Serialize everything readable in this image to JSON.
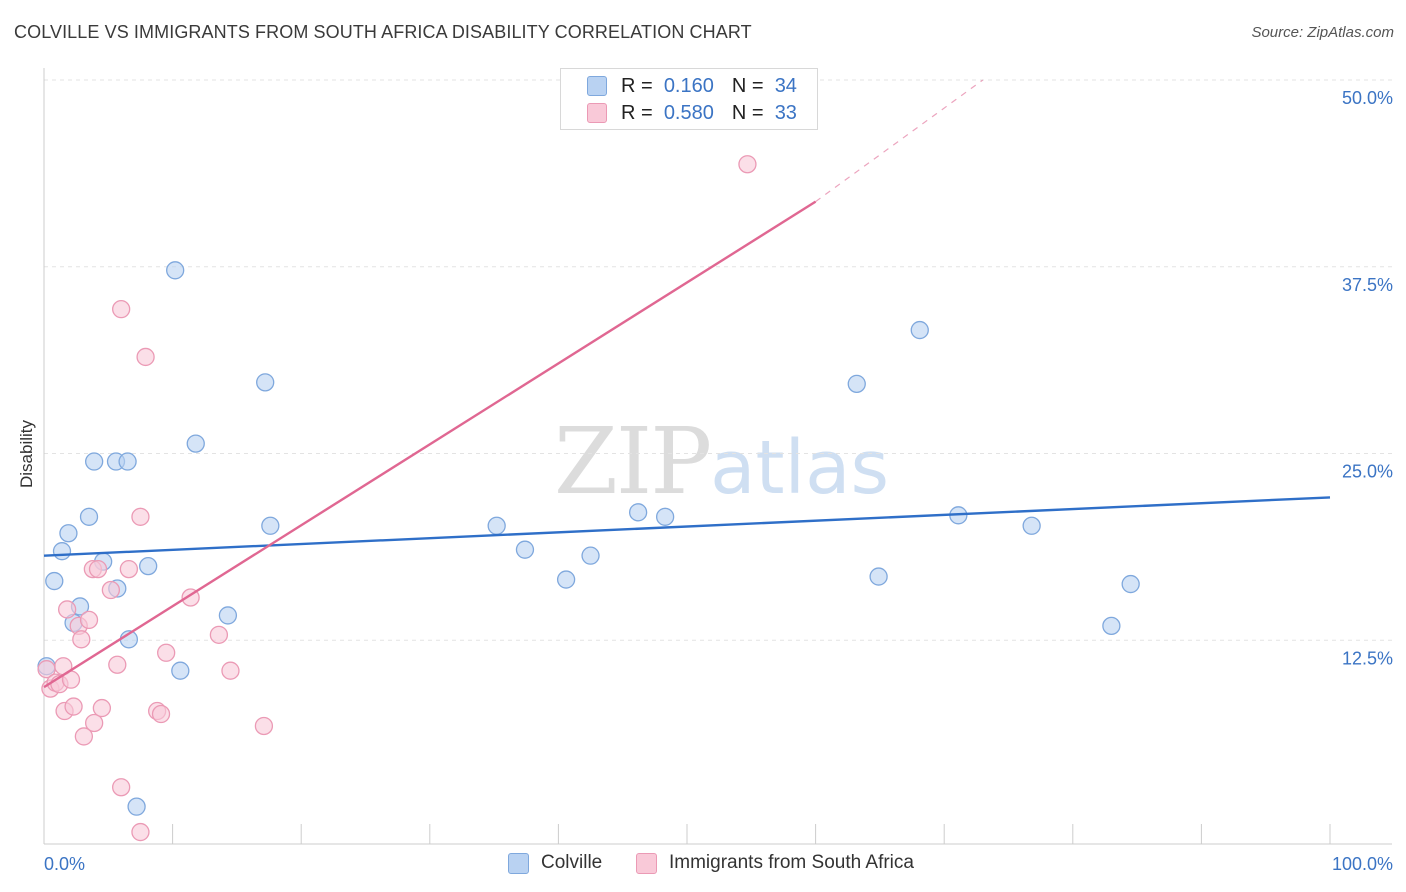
{
  "header": {
    "title": "COLVILLE VS IMMIGRANTS FROM SOUTH AFRICA DISABILITY CORRELATION CHART",
    "source": "Source: ZipAtlas.com"
  },
  "watermark": {
    "zip": "ZIP",
    "atlas": "atlas"
  },
  "legend_top": [
    {
      "r_label": "R =",
      "r_value": "0.160",
      "n_label": "N =",
      "n_value": "34"
    },
    {
      "r_label": "R =",
      "r_value": "0.580",
      "n_label": "N =",
      "n_value": "33"
    }
  ],
  "colors": {
    "colville_fill": "#b9d2f2",
    "colville_stroke": "#7fa8dd",
    "colville_line": "#2f6fc8",
    "sa_fill": "#f9c9d8",
    "sa_stroke": "#eb9ab5",
    "sa_line": "#e06792",
    "tick_label": "#3b74c4",
    "grid": "#e3e3e3",
    "axis": "#cccccc"
  },
  "chart_data": {
    "type": "scatter",
    "title": "COLVILLE VS IMMIGRANTS FROM SOUTH AFRICA DISABILITY CORRELATION CHART",
    "xlabel": "",
    "ylabel": "Disability",
    "xlim": [
      0,
      100
    ],
    "ylim": [
      0,
      50
    ],
    "x_tick_labels": [
      "0.0%",
      "100.0%"
    ],
    "y_ticks": [
      12.5,
      25.0,
      37.5,
      50.0
    ],
    "y_tick_labels": [
      "12.5%",
      "25.0%",
      "37.5%",
      "50.0%"
    ],
    "grid": true,
    "legend_position": "bottom",
    "series": [
      {
        "name": "Colville",
        "r": 0.16,
        "n": 34,
        "trend": {
          "x0": 0,
          "y0": 19.3,
          "x1": 100,
          "y1": 23.2
        },
        "points": [
          [
            0.2,
            11.9
          ],
          [
            0.8,
            17.6
          ],
          [
            1.4,
            19.6
          ],
          [
            1.9,
            20.8
          ],
          [
            2.3,
            14.8
          ],
          [
            2.8,
            15.9
          ],
          [
            3.5,
            21.9
          ],
          [
            3.9,
            25.6
          ],
          [
            4.6,
            18.9
          ],
          [
            5.6,
            25.6
          ],
          [
            5.7,
            17.1
          ],
          [
            6.5,
            25.6
          ],
          [
            6.6,
            13.7
          ],
          [
            7.2,
            2.5
          ],
          [
            8.1,
            18.6
          ],
          [
            10.2,
            38.4
          ],
          [
            10.6,
            11.6
          ],
          [
            11.8,
            26.8
          ],
          [
            14.3,
            15.3
          ],
          [
            17.2,
            30.9
          ],
          [
            17.6,
            21.3
          ],
          [
            35.2,
            21.3
          ],
          [
            37.4,
            19.7
          ],
          [
            40.6,
            17.7
          ],
          [
            42.5,
            19.3
          ],
          [
            46.2,
            22.2
          ],
          [
            48.3,
            21.9
          ],
          [
            63.2,
            30.8
          ],
          [
            64.9,
            17.9
          ],
          [
            68.1,
            34.4
          ],
          [
            71.1,
            22.0
          ],
          [
            76.8,
            21.3
          ],
          [
            83.0,
            14.6
          ],
          [
            84.5,
            17.4
          ]
        ]
      },
      {
        "name": "Immigrants from South Africa",
        "r": 0.58,
        "n": 33,
        "trend": {
          "x0": 0,
          "y0": 10.5,
          "x1": 60,
          "y1": 43.0,
          "dash_x1": 73,
          "dash_y1": 50.0
        },
        "points": [
          [
            0.2,
            11.7
          ],
          [
            0.5,
            10.4
          ],
          [
            0.9,
            10.8
          ],
          [
            1.2,
            10.7
          ],
          [
            1.5,
            11.9
          ],
          [
            1.6,
            8.9
          ],
          [
            1.8,
            15.7
          ],
          [
            2.1,
            11.0
          ],
          [
            2.3,
            9.2
          ],
          [
            2.7,
            14.6
          ],
          [
            2.9,
            13.7
          ],
          [
            3.1,
            7.2
          ],
          [
            3.5,
            15.0
          ],
          [
            3.8,
            18.4
          ],
          [
            3.9,
            8.1
          ],
          [
            4.2,
            18.4
          ],
          [
            4.5,
            9.1
          ],
          [
            5.2,
            17.0
          ],
          [
            5.7,
            12.0
          ],
          [
            6.0,
            3.8
          ],
          [
            6.0,
            35.8
          ],
          [
            6.6,
            18.4
          ],
          [
            7.5,
            21.9
          ],
          [
            7.5,
            0.8
          ],
          [
            7.9,
            32.6
          ],
          [
            8.8,
            8.9
          ],
          [
            9.1,
            8.7
          ],
          [
            9.5,
            12.8
          ],
          [
            11.4,
            16.5
          ],
          [
            13.6,
            14.0
          ],
          [
            14.5,
            11.6
          ],
          [
            17.1,
            7.9
          ],
          [
            54.7,
            45.5
          ]
        ]
      }
    ]
  },
  "legend_bottom": [
    {
      "label": "Colville"
    },
    {
      "label": "Immigrants from South Africa"
    }
  ]
}
